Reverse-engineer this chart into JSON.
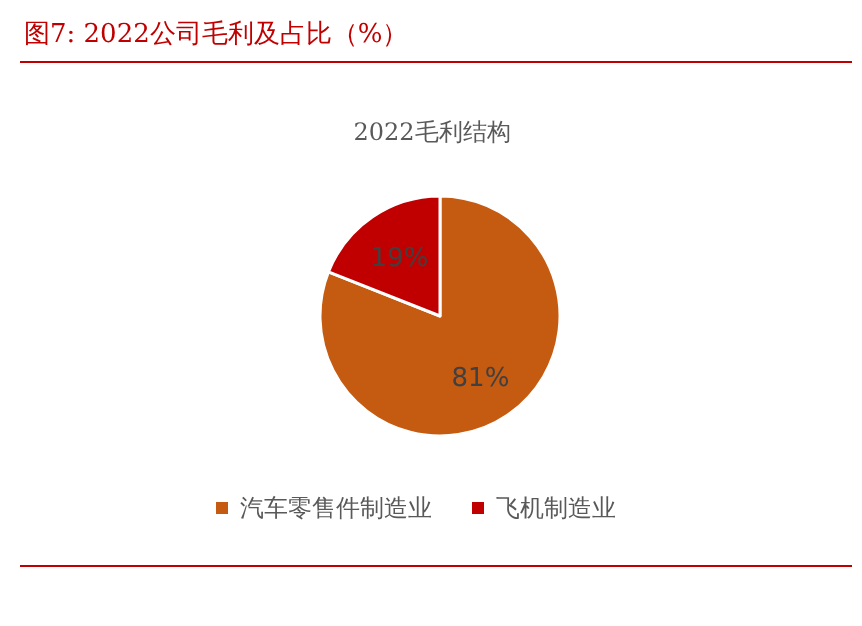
{
  "chart_data": {
    "type": "pie",
    "title": "图7:   2022公司毛利及占比（%）",
    "subtitle": "2022毛利结构",
    "categories": [
      "汽车零售件制造业",
      "飞机制造业"
    ],
    "values": [
      81,
      19
    ],
    "colors": [
      "#c55a11",
      "#c00000"
    ],
    "value_labels": [
      "81%",
      "19%"
    ],
    "legend": "bottom"
  }
}
